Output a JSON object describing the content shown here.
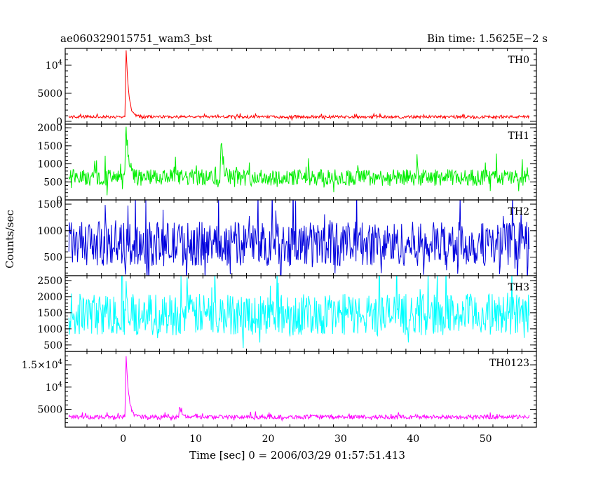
{
  "header": {
    "obs_id": "ae060329015751_wam3_bst",
    "bin_time": "Bin time: 1.5625E−2 s"
  },
  "chart_data": {
    "type": "line",
    "ylabel": "Counts/sec",
    "xlabel": "Time [sec] 0 = 2006/03/29 01:57:51.413",
    "xlim": [
      -8,
      57
    ],
    "x_ticks": [
      0,
      10,
      20,
      30,
      40,
      50
    ],
    "data_x_range": [
      -7.5,
      56
    ],
    "grid": false,
    "panels": [
      {
        "name": "TH0",
        "color": "#ff0000",
        "ylim": [
          -500,
          13000
        ],
        "yticks": [
          {
            "value": 0,
            "label": "0"
          },
          {
            "value": 5000,
            "label": "5000"
          },
          {
            "value": 10000,
            "label": "10",
            "exp": "4"
          }
        ],
        "baseline": 800,
        "noise": 250,
        "peaks": [
          {
            "t": 0.4,
            "value": 13000
          }
        ]
      },
      {
        "name": "TH1",
        "color": "#00ee00",
        "ylim": [
          0,
          2100
        ],
        "yticks": [
          {
            "value": 0,
            "label": "0"
          },
          {
            "value": 500,
            "label": "500"
          },
          {
            "value": 1000,
            "label": "1000"
          },
          {
            "value": 1500,
            "label": "1500"
          },
          {
            "value": 2000,
            "label": "2000"
          }
        ],
        "baseline": 620,
        "noise": 230,
        "peaks": [
          {
            "t": 0.4,
            "value": 2000
          },
          {
            "t": 13.5,
            "value": 1580
          }
        ]
      },
      {
        "name": "TH2",
        "color": "#0000dd",
        "ylim": [
          150,
          1580
        ],
        "yticks": [
          {
            "value": 500,
            "label": "500"
          },
          {
            "value": 1000,
            "label": "1000"
          },
          {
            "value": 1500,
            "label": "1500"
          }
        ],
        "baseline": 750,
        "noise": 420,
        "peaks": []
      },
      {
        "name": "TH3",
        "color": "#00ffff",
        "ylim": [
          300,
          2650
        ],
        "yticks": [
          {
            "value": 500,
            "label": "500"
          },
          {
            "value": 1000,
            "label": "1000"
          },
          {
            "value": 1500,
            "label": "1500"
          },
          {
            "value": 2000,
            "label": "2000"
          },
          {
            "value": 2500,
            "label": "2500"
          }
        ],
        "baseline": 1450,
        "noise": 650,
        "peaks": []
      },
      {
        "name": "TH0123",
        "color": "#ff00ff",
        "ylim": [
          1000,
          18000
        ],
        "yticks": [
          {
            "value": 5000,
            "label": "5000"
          },
          {
            "value": 10000,
            "label": "10",
            "exp": "4"
          },
          {
            "value": 15000,
            "label": "1.5×10",
            "exp": "4"
          }
        ],
        "baseline": 3300,
        "noise": 450,
        "peaks": [
          {
            "t": 0.4,
            "value": 17500
          },
          {
            "t": 7.8,
            "value": 5700
          }
        ]
      }
    ]
  }
}
